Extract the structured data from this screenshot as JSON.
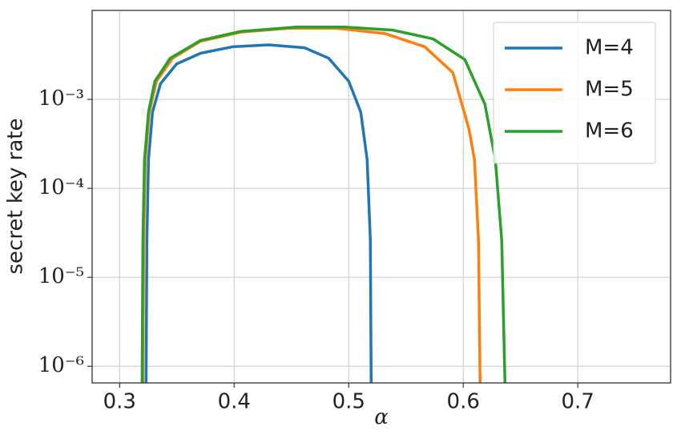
{
  "chart_data": {
    "type": "line",
    "x_label": "α",
    "y_label": "secret key rate",
    "xlim": [
      0.276,
      0.781
    ],
    "xticks": [
      0.3,
      0.4,
      0.5,
      0.6,
      0.7
    ],
    "ylim": [
      6.5e-07,
      0.01
    ],
    "yticks": [
      {
        "value": 1e-06,
        "label": "10⁻⁶"
      },
      {
        "value": 1e-05,
        "label": "10⁻⁵"
      },
      {
        "value": 0.0001,
        "label": "10⁻⁴"
      },
      {
        "value": 0.001,
        "label": "10⁻³"
      }
    ],
    "y_scale": "log",
    "grid": true,
    "legend": "upper right",
    "series": [
      {
        "name": "M=4",
        "color": "#1f77b4",
        "x": [
          0.3231,
          0.3238,
          0.3252,
          0.3287,
          0.3357,
          0.3497,
          0.3706,
          0.3986,
          0.4301,
          0.4615,
          0.4825,
          0.5,
          0.5105,
          0.5161,
          0.5189,
          0.5196
        ],
        "values": [
          6.5e-07,
          2.6e-05,
          0.00021,
          0.00072,
          0.0015,
          0.0025,
          0.0033,
          0.0039,
          0.0041,
          0.0038,
          0.0029,
          0.0016,
          0.00072,
          0.00021,
          2.6e-05,
          6.5e-07
        ]
      },
      {
        "name": "M=5",
        "color": "#ff7f0e",
        "x": [
          0.3203,
          0.321,
          0.3224,
          0.3259,
          0.3322,
          0.3462,
          0.3706,
          0.4056,
          0.4476,
          0.4895,
          0.5315,
          0.5664,
          0.5909,
          0.6049,
          0.6098,
          0.6133,
          0.6147
        ],
        "values": [
          6.5e-07,
          2.6e-05,
          0.00021,
          0.00072,
          0.0016,
          0.0029,
          0.0045,
          0.0057,
          0.0063,
          0.0063,
          0.0055,
          0.0039,
          0.002,
          0.00047,
          0.00021,
          2.6e-05,
          6.5e-07
        ]
      },
      {
        "name": "M=6",
        "color": "#2ca02c",
        "x": [
          0.3196,
          0.3203,
          0.3217,
          0.3252,
          0.3308,
          0.3441,
          0.3706,
          0.4056,
          0.4545,
          0.4965,
          0.5385,
          0.5734,
          0.6014,
          0.6189,
          0.628,
          0.6336,
          0.6364
        ],
        "values": [
          6.5e-07,
          2.6e-05,
          0.00021,
          0.00072,
          0.0016,
          0.0029,
          0.0046,
          0.0058,
          0.0065,
          0.0065,
          0.006,
          0.0048,
          0.0028,
          0.00088,
          0.00021,
          2.6e-05,
          6.5e-07
        ]
      }
    ]
  }
}
